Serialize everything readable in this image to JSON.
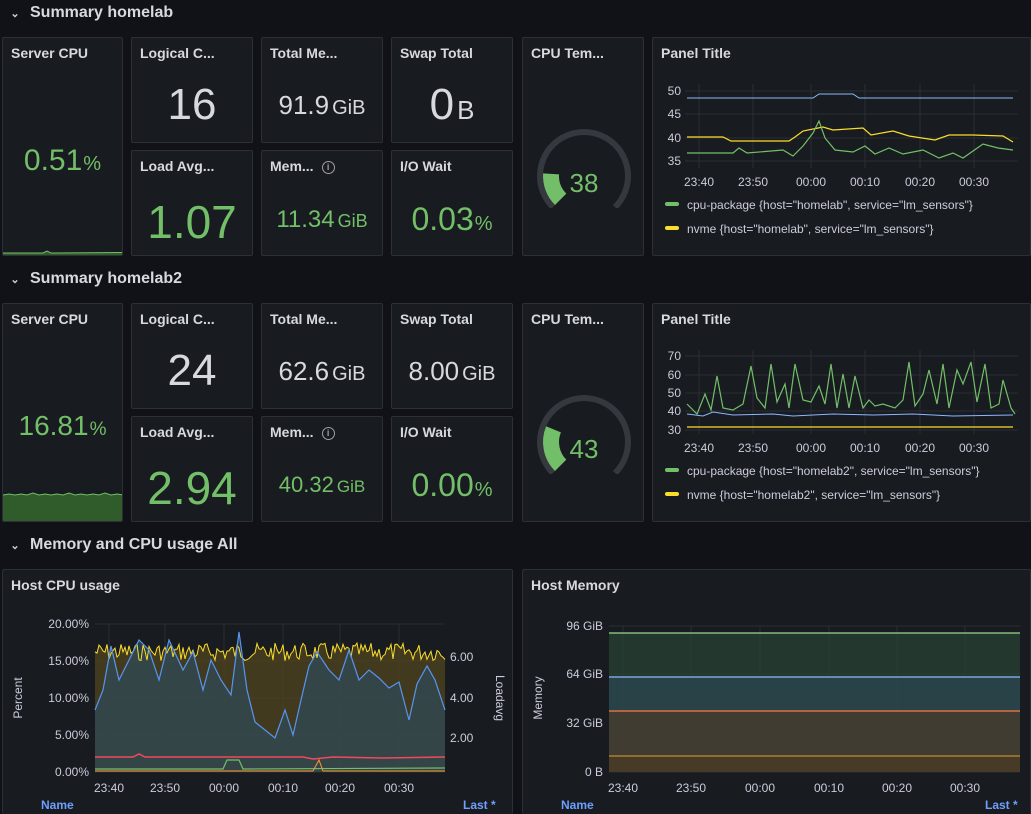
{
  "rows": [
    {
      "title": "Summary homelab"
    },
    {
      "title": "Summary homelab2"
    },
    {
      "title": "Memory and CPU usage All"
    }
  ],
  "homelab": {
    "server_cpu": {
      "title": "Server CPU",
      "value": "0.51",
      "unit": "%",
      "fill_fraction": 0.005
    },
    "logical_cores": {
      "title": "Logical C...",
      "value": "16"
    },
    "total_memory": {
      "title": "Total Me...",
      "value": "91.9",
      "unit": "GiB"
    },
    "swap_total": {
      "title": "Swap Total",
      "value": "0",
      "unit": "B"
    },
    "load_avg": {
      "title": "Load Avg...",
      "value": "1.07"
    },
    "memory_used": {
      "title": "Mem...",
      "value": "11.34",
      "unit": "GiB"
    },
    "io_wait": {
      "title": "I/O Wait",
      "value": "0.03",
      "unit": "%"
    },
    "cpu_temp": {
      "title": "CPU Tem...",
      "value": "38",
      "fraction": 0.18
    },
    "temp_chart": {
      "title": "Panel Title",
      "y_ticks": [
        "50",
        "45",
        "40",
        "35"
      ],
      "x_ticks": [
        "23:40",
        "23:50",
        "00:00",
        "00:10",
        "00:20",
        "00:30"
      ],
      "legend": [
        {
          "label": "cpu-package {host=\"homelab\", service=\"lm_sensors\"}",
          "color": "#73bf69"
        },
        {
          "label": "nvme {host=\"homelab\", service=\"lm_sensors\"}",
          "color": "#fade2a"
        }
      ]
    }
  },
  "homelab2": {
    "server_cpu": {
      "title": "Server CPU",
      "value": "16.81",
      "unit": "%",
      "fill_fraction": 0.17
    },
    "logical_cores": {
      "title": "Logical C...",
      "value": "24"
    },
    "total_memory": {
      "title": "Total Me...",
      "value": "62.6",
      "unit": "GiB"
    },
    "swap_total": {
      "title": "Swap Total",
      "value": "8.00",
      "unit": "GiB"
    },
    "load_avg": {
      "title": "Load Avg...",
      "value": "2.94"
    },
    "memory_used": {
      "title": "Mem...",
      "value": "40.32",
      "unit": "GiB"
    },
    "io_wait": {
      "title": "I/O Wait",
      "value": "0.00",
      "unit": "%"
    },
    "cpu_temp": {
      "title": "CPU Tem...",
      "value": "43",
      "fraction": 0.25
    },
    "temp_chart": {
      "title": "Panel Title",
      "y_ticks": [
        "70",
        "60",
        "50",
        "40",
        "30"
      ],
      "x_ticks": [
        "23:40",
        "23:50",
        "00:00",
        "00:10",
        "00:20",
        "00:30"
      ],
      "legend": [
        {
          "label": "cpu-package {host=\"homelab2\", service=\"lm_sensors\"}",
          "color": "#73bf69"
        },
        {
          "label": "nvme {host=\"homelab2\", service=\"lm_sensors\"}",
          "color": "#fade2a"
        }
      ]
    }
  },
  "host_cpu": {
    "title": "Host CPU usage",
    "y_left_label": "Percent",
    "y_right_label": "Loadavg",
    "y_left_ticks": [
      "20.00%",
      "15.00%",
      "10.00%",
      "5.00%",
      "0.00%"
    ],
    "y_right_ticks": [
      "6.00",
      "4.00",
      "2.00"
    ],
    "x_ticks": [
      "23:40",
      "23:50",
      "00:00",
      "00:10",
      "00:20",
      "00:30"
    ],
    "footer_left": "Name",
    "footer_right": "Last *"
  },
  "host_memory": {
    "title": "Host Memory",
    "y_label": "Memory",
    "y_ticks": [
      "96 GiB",
      "64 GiB",
      "32 GiB",
      "0 B"
    ],
    "x_ticks": [
      "23:40",
      "23:50",
      "00:00",
      "00:10",
      "00:20",
      "00:30"
    ],
    "footer_left": "Name",
    "footer_right": "Last *"
  },
  "icons": {
    "row_toggle": "chevron-down-icon",
    "info": "info-icon"
  },
  "colors": {
    "green": "#73bf69",
    "yellow": "#fade2a",
    "blue": "#8ab8ff",
    "red": "#f2495c",
    "orange": "#ff9830",
    "bg": "#111217",
    "panel": "#181b1f"
  }
}
